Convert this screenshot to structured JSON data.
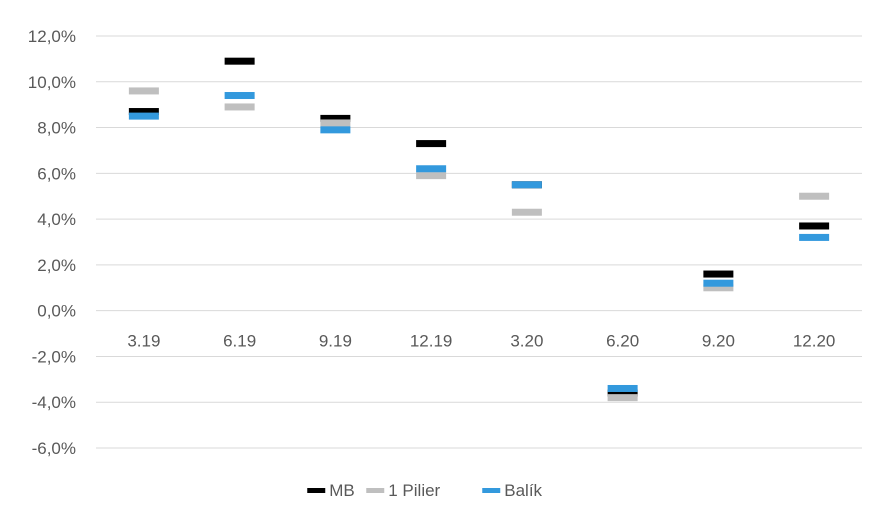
{
  "chart_data": {
    "type": "scatter",
    "title": "",
    "xlabel": "",
    "ylabel": "",
    "categories": [
      "3.19",
      "6.19",
      "9.19",
      "12.19",
      "3.20",
      "6.20",
      "9.20",
      "12.20"
    ],
    "ylim": [
      -6.0,
      12.0
    ],
    "y_ticks": [
      "-6,0%",
      "-4,0%",
      "-2,0%",
      "0,0%",
      "2,0%",
      "4,0%",
      "6,0%",
      "8,0%",
      "10,0%",
      "12,0%"
    ],
    "grid": true,
    "legend_position": "bottom",
    "marker": "dash",
    "series": [
      {
        "name": "MB",
        "color": "#000000",
        "values": [
          8.7,
          10.9,
          8.4,
          7.3,
          5.5,
          -3.6,
          1.6,
          3.7
        ]
      },
      {
        "name": "1 Pilier",
        "color": "#bfbfbf",
        "values": [
          9.6,
          8.9,
          8.2,
          5.9,
          4.3,
          -3.8,
          1.0,
          5.0
        ]
      },
      {
        "name": "Balík",
        "color": "#3399dd",
        "values": [
          8.5,
          9.4,
          7.9,
          6.2,
          5.5,
          -3.4,
          1.2,
          3.2
        ]
      }
    ]
  }
}
